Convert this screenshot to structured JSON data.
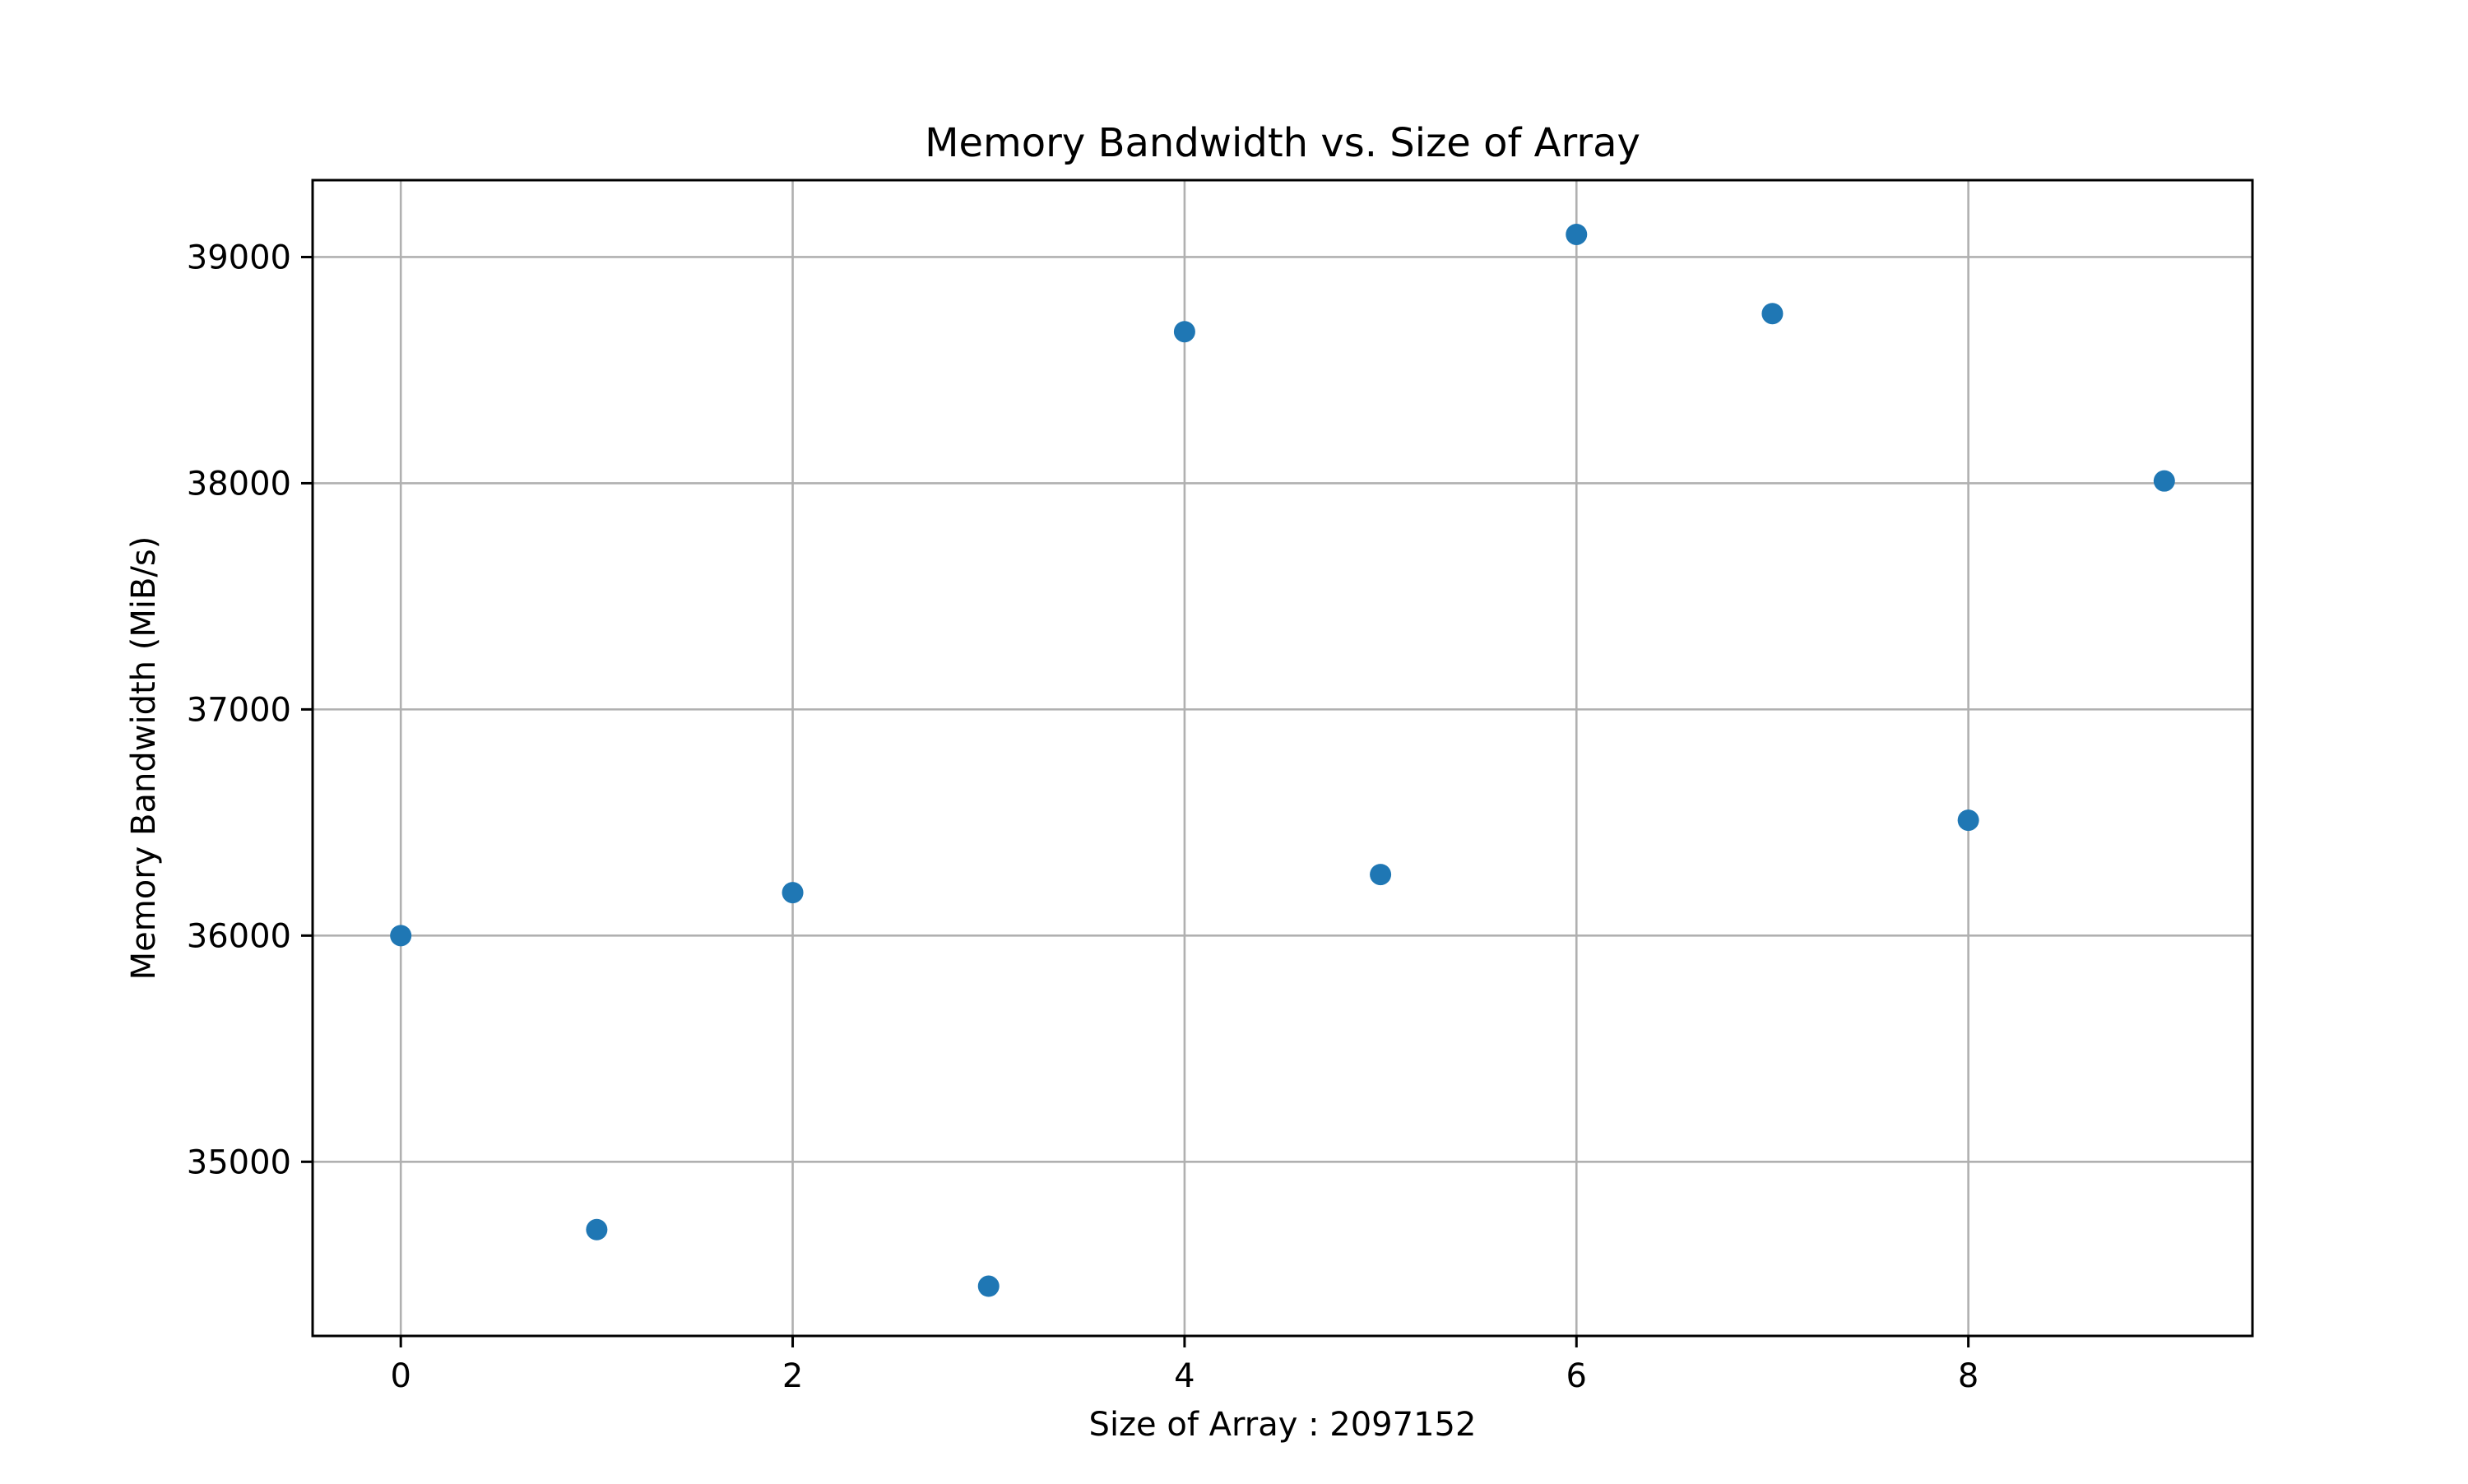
{
  "chart_data": {
    "type": "scatter",
    "title": "Memory Bandwidth vs. Size of Array",
    "xlabel": "Size of Array : 2097152",
    "ylabel": "Memory Bandwidth (MiB/s)",
    "xlim": [
      -0.45,
      9.45
    ],
    "ylim": [
      34230,
      39340
    ],
    "xticks": [
      0,
      2,
      4,
      6,
      8
    ],
    "yticks": [
      35000,
      36000,
      37000,
      38000,
      39000
    ],
    "grid": true,
    "series": [
      {
        "color": "#1f77b4",
        "x": [
          0,
          1,
          2,
          3,
          4,
          5,
          6,
          7,
          8,
          9
        ],
        "y": [
          36000,
          34700,
          36190,
          34450,
          38670,
          36270,
          39100,
          38750,
          36510,
          38010
        ]
      }
    ]
  }
}
